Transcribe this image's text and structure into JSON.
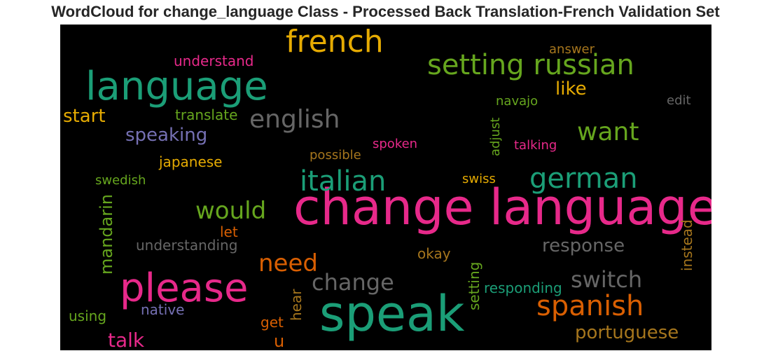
{
  "title": "WordCloud for change_language Class - Processed Back Translation-French Validation Set",
  "colors": {
    "background": "#000000",
    "teal": "#1b9e77",
    "orange": "#d95f02",
    "purple": "#7570b3",
    "pink": "#e7298a",
    "green": "#66a61e",
    "gold": "#e6ab02",
    "brown": "#a6761d",
    "gray": "#666666"
  },
  "chart_data": {
    "type": "wordcloud",
    "words": [
      {
        "text": "change language",
        "color": "pink"
      },
      {
        "text": "speak",
        "color": "teal"
      },
      {
        "text": "language",
        "color": "teal"
      },
      {
        "text": "please",
        "color": "pink"
      },
      {
        "text": "french",
        "color": "gold"
      },
      {
        "text": "setting russian",
        "color": "green"
      },
      {
        "text": "italian",
        "color": "teal"
      },
      {
        "text": "german",
        "color": "teal"
      },
      {
        "text": "spanish",
        "color": "orange"
      },
      {
        "text": "english",
        "color": "gray"
      },
      {
        "text": "want",
        "color": "green"
      },
      {
        "text": "would",
        "color": "green"
      },
      {
        "text": "need",
        "color": "orange"
      },
      {
        "text": "switch",
        "color": "gray"
      },
      {
        "text": "change",
        "color": "gray"
      },
      {
        "text": "talk",
        "color": "pink"
      },
      {
        "text": "portuguese",
        "color": "brown"
      },
      {
        "text": "response",
        "color": "gray"
      },
      {
        "text": "speaking",
        "color": "purple"
      },
      {
        "text": "start",
        "color": "gold"
      },
      {
        "text": "like",
        "color": "gold"
      },
      {
        "text": "mandarin",
        "color": "green"
      },
      {
        "text": "understand",
        "color": "pink"
      },
      {
        "text": "translate",
        "color": "green"
      },
      {
        "text": "japanese",
        "color": "gold"
      },
      {
        "text": "swedish",
        "color": "green"
      },
      {
        "text": "possible",
        "color": "brown"
      },
      {
        "text": "spoken",
        "color": "pink"
      },
      {
        "text": "adjust",
        "color": "green"
      },
      {
        "text": "navajo",
        "color": "green"
      },
      {
        "text": "talking",
        "color": "pink"
      },
      {
        "text": "edit",
        "color": "gray"
      },
      {
        "text": "answer",
        "color": "brown"
      },
      {
        "text": "swiss",
        "color": "gold"
      },
      {
        "text": "let",
        "color": "orange"
      },
      {
        "text": "understanding",
        "color": "gray"
      },
      {
        "text": "okay",
        "color": "brown"
      },
      {
        "text": "instead",
        "color": "brown"
      },
      {
        "text": "responding",
        "color": "teal"
      },
      {
        "text": "setting",
        "color": "green"
      },
      {
        "text": "hear",
        "color": "brown"
      },
      {
        "text": "get",
        "color": "orange"
      },
      {
        "text": "u",
        "color": "orange"
      },
      {
        "text": "native",
        "color": "purple"
      },
      {
        "text": "using",
        "color": "green"
      }
    ]
  }
}
